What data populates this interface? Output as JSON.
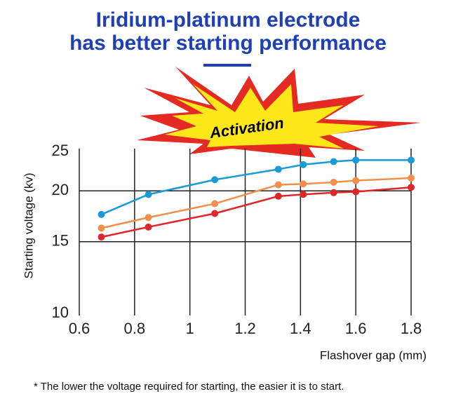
{
  "chart_data": {
    "type": "line",
    "title": [
      "Iridium-platinum electrode",
      "has better starting performance"
    ],
    "badge": "Activation",
    "x_label": "Flashover gap (mm)",
    "y_label": "Starting voltage (kv)",
    "x": [
      0.68,
      0.85,
      1.09,
      1.32,
      1.41,
      1.52,
      1.6,
      1.8
    ],
    "series": [
      {
        "color": "#1a9ad6",
        "values": [
          17.5,
          19.6,
          21.3,
          22.6,
          23.2,
          23.6,
          23.8,
          23.8
        ]
      },
      {
        "color": "#f0904a",
        "values": [
          16.2,
          17.2,
          18.6,
          20.7,
          20.8,
          21.0,
          21.2,
          21.5
        ]
      },
      {
        "color": "#e0262a",
        "values": [
          15.4,
          16.3,
          17.6,
          19.4,
          19.6,
          19.8,
          19.9,
          20.4
        ]
      }
    ],
    "xlim": [
      0.6,
      1.8
    ],
    "xticks": [
      0.6,
      0.8,
      1,
      1.2,
      1.4,
      1.6,
      1.8
    ],
    "ylim": [
      10,
      25
    ],
    "yticks": [
      10,
      15,
      20,
      25
    ],
    "ylog": true,
    "grid": true,
    "footnote": "* The lower the voltage required for starting, the easier it is to start."
  }
}
